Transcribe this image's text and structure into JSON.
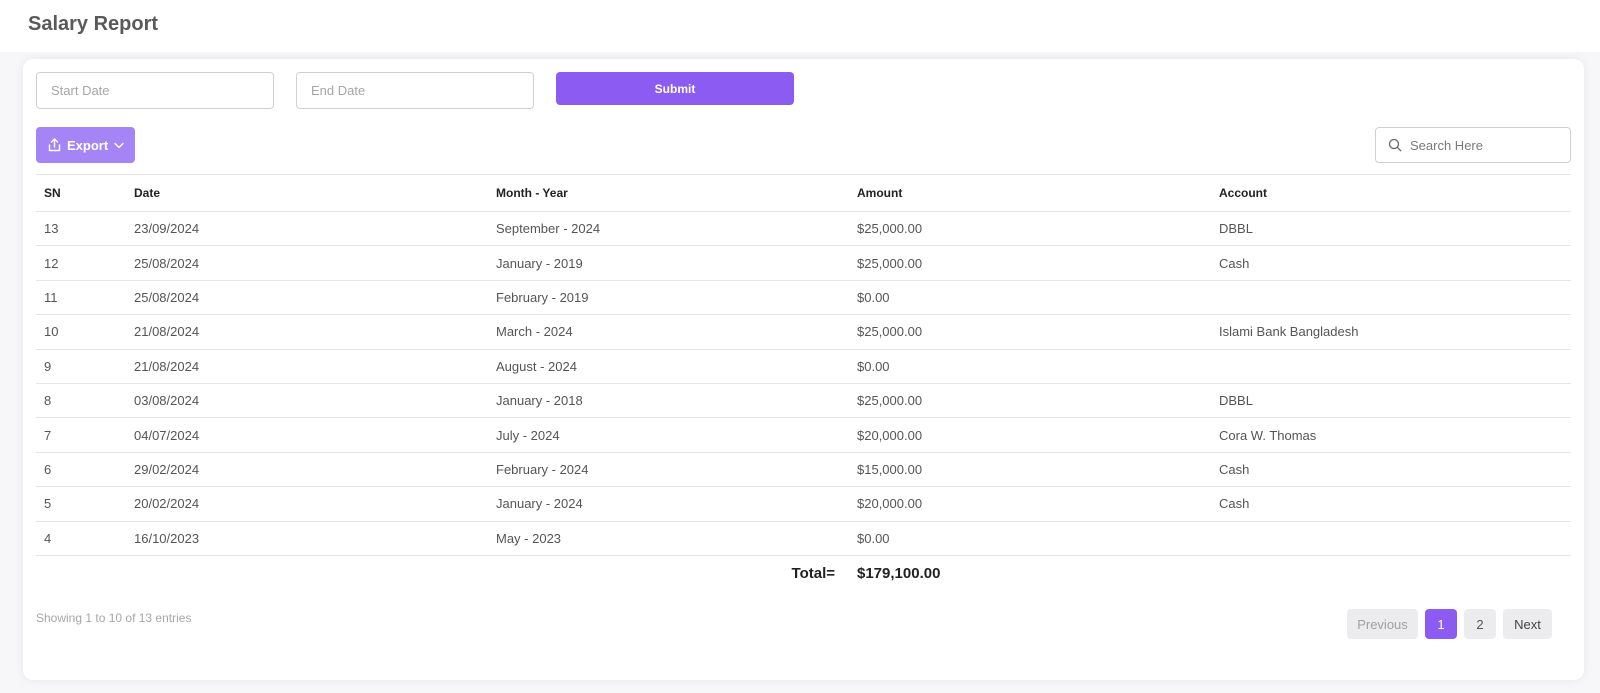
{
  "page": {
    "title": "Salary Report"
  },
  "filters": {
    "start_placeholder": "Start Date",
    "end_placeholder": "End Date",
    "submit_label": "Submit"
  },
  "toolbar": {
    "export_label": "Export",
    "search_placeholder": "Search Here"
  },
  "colors": {
    "accent": "#8c5cf2",
    "export": "#a585f5"
  },
  "table": {
    "headers": [
      "SN",
      "Date",
      "Month - Year",
      "Amount",
      "Account"
    ],
    "rows": [
      [
        "13",
        "23/09/2024",
        "September - 2024",
        "$25,000.00",
        "DBBL"
      ],
      [
        "12",
        "25/08/2024",
        "January - 2019",
        "$25,000.00",
        "Cash"
      ],
      [
        "11",
        "25/08/2024",
        "February - 2019",
        "$0.00",
        ""
      ],
      [
        "10",
        "21/08/2024",
        "March - 2024",
        "$25,000.00",
        "Islami Bank Bangladesh"
      ],
      [
        "9",
        "21/08/2024",
        "August - 2024",
        "$0.00",
        ""
      ],
      [
        "8",
        "03/08/2024",
        "January - 2018",
        "$25,000.00",
        "DBBL"
      ],
      [
        "7",
        "04/07/2024",
        "July - 2024",
        "$20,000.00",
        "Cora W. Thomas"
      ],
      [
        "6",
        "29/02/2024",
        "February - 2024",
        "$15,000.00",
        "Cash"
      ],
      [
        "5",
        "20/02/2024",
        "January - 2024",
        "$20,000.00",
        "Cash"
      ],
      [
        "4",
        "16/10/2023",
        "May - 2023",
        "$0.00",
        ""
      ]
    ],
    "total_label": "Total=",
    "total_value": "$179,100.00"
  },
  "footer": {
    "info": "Showing 1 to 10 of 13 entries",
    "previous_label": "Previous",
    "pages": [
      "1",
      "2"
    ],
    "active_page": "1",
    "next_label": "Next"
  }
}
